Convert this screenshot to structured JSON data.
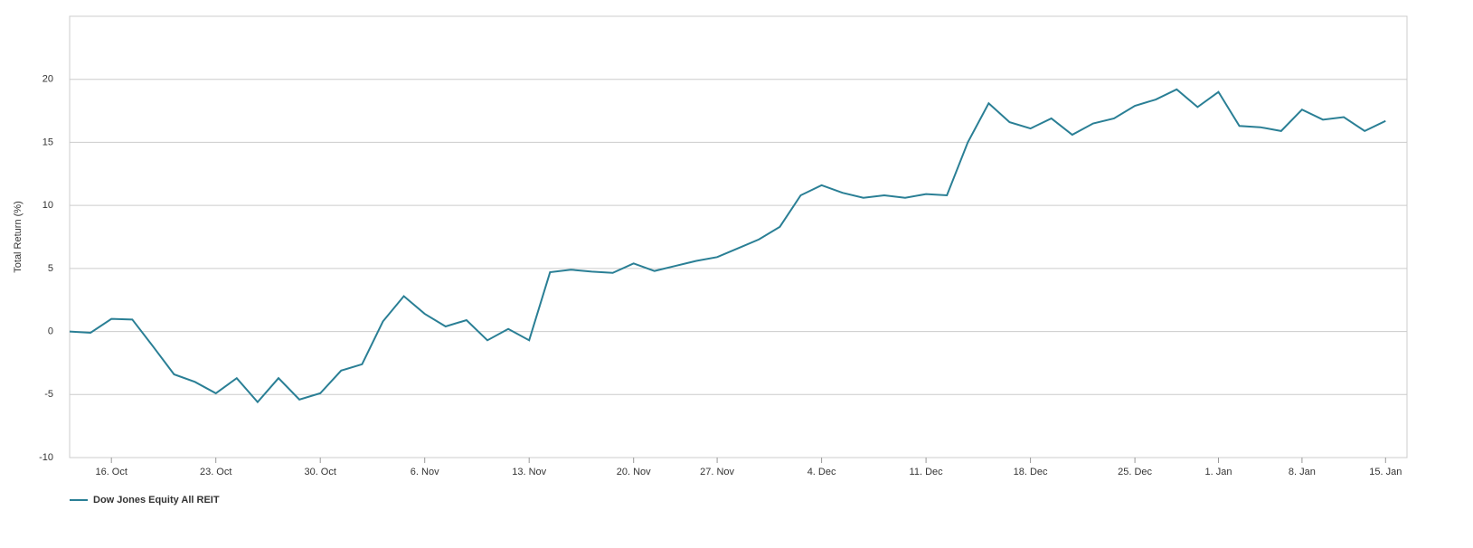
{
  "chart_data": {
    "type": "line",
    "y_label": "Total Return (%)",
    "categories": [
      null,
      null,
      "16. Oct",
      null,
      null,
      null,
      null,
      "23. Oct",
      null,
      null,
      null,
      null,
      "30. Oct",
      null,
      null,
      null,
      null,
      "6. Nov",
      null,
      null,
      null,
      null,
      "13. Nov",
      null,
      null,
      null,
      null,
      "20. Nov",
      null,
      null,
      null,
      "27. Nov",
      null,
      null,
      null,
      null,
      "4. Dec",
      null,
      null,
      null,
      null,
      "11. Dec",
      null,
      null,
      null,
      null,
      "18. Dec",
      null,
      null,
      null,
      null,
      "25. Dec",
      null,
      null,
      null,
      "1. Jan",
      null,
      null,
      null,
      "8. Jan",
      null,
      null,
      null,
      "15. Jan"
    ],
    "series": [
      {
        "name": "Dow Jones Equity All REIT",
        "color": "#2a7f95",
        "values": [
          0.0,
          -0.1,
          1.0,
          0.95,
          -1.2,
          -3.4,
          -4.0,
          -4.9,
          -3.7,
          -5.6,
          -3.7,
          -5.4,
          -4.9,
          -3.1,
          -2.6,
          0.8,
          2.8,
          1.4,
          0.4,
          0.9,
          -0.7,
          0.2,
          -0.7,
          4.7,
          4.9,
          4.75,
          4.65,
          5.4,
          4.8,
          5.2,
          5.6,
          5.9,
          6.6,
          7.3,
          8.3,
          10.8,
          11.6,
          11.0,
          10.6,
          10.8,
          10.6,
          10.9,
          10.8,
          15.0,
          18.1,
          16.6,
          16.1,
          16.9,
          15.6,
          16.5,
          16.9,
          17.9,
          18.4,
          19.2,
          17.8,
          19.0,
          16.3,
          16.2,
          15.9,
          17.6,
          16.8,
          17.0,
          15.9,
          16.7
        ]
      }
    ],
    "ylim": [
      -10,
      25
    ],
    "yticks": [
      -10,
      -5,
      0,
      5,
      10,
      15,
      20
    ],
    "grid": true
  }
}
